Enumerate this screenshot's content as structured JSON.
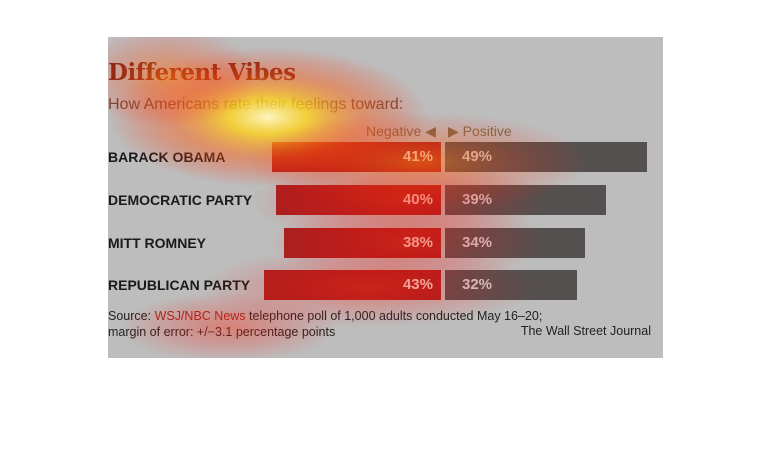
{
  "chart": {
    "title": "Different Vibes",
    "subtitle": "How Americans rate their feelings toward:",
    "legend": {
      "negative": "Negative ◀",
      "positive": "▶ Positive"
    },
    "source_prefix": "Source: ",
    "source_highlight": "WSJ/NBC News",
    "source_line1_rest": " telephone poll of 1,000 adults conducted May 16–20;",
    "source_line2": "margin of error: +/−3.1 percentage points",
    "credit": "The Wall Street Journal"
  },
  "chart_data": {
    "type": "bar",
    "orientation": "horizontal-diverging",
    "categories": [
      "BARACK OBAMA",
      "DEMOCRATIC PARTY",
      "MITT ROMNEY",
      "REPUBLICAN PARTY"
    ],
    "series": [
      {
        "name": "Negative",
        "values": [
          41,
          40,
          38,
          43
        ],
        "labels": [
          "41%",
          "40%",
          "38%",
          "43%"
        ],
        "color": "#a82020"
      },
      {
        "name": "Positive",
        "values": [
          49,
          39,
          34,
          32
        ],
        "labels": [
          "49%",
          "39%",
          "34%",
          "32%"
        ],
        "color": "#555050"
      }
    ],
    "unit": "%"
  },
  "colors": {
    "panel": "#bdbdbd",
    "title": "#7a2418",
    "negative": "#a82020",
    "positive": "#555050"
  }
}
